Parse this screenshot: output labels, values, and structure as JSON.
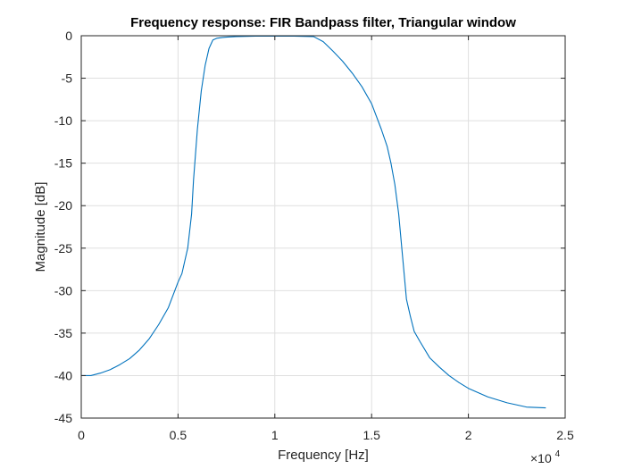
{
  "chart_data": {
    "type": "line",
    "title": "Frequency response: FIR Bandpass filter, Triangular window",
    "xlabel": "Frequency [Hz]",
    "ylabel": "Magnitude [dB]",
    "x_exponent_base": "×10",
    "x_exponent_power": "4",
    "xlim": [
      0,
      25000
    ],
    "ylim": [
      -45,
      0
    ],
    "x_ticks": [
      0,
      5000,
      10000,
      15000,
      20000,
      25000
    ],
    "x_tick_labels": [
      "0",
      "0.5",
      "1",
      "1.5",
      "2",
      "2.5"
    ],
    "y_ticks": [
      0,
      -5,
      -10,
      -15,
      -20,
      -25,
      -30,
      -35,
      -40,
      -45
    ],
    "y_tick_labels": [
      "0",
      "-5",
      "-10",
      "-15",
      "-20",
      "-25",
      "-30",
      "-35",
      "-40",
      "-45"
    ],
    "grid": true,
    "colors": {
      "line": "#0072bd",
      "grid": "#dfdfdf",
      "axes": "#262626"
    },
    "series": [
      {
        "x": [
          0,
          500,
          1000,
          1500,
          2000,
          2500,
          3000,
          3500,
          4000,
          4500,
          5000,
          5200,
          5500,
          5700,
          5800,
          6000,
          6200,
          6400,
          6600,
          6800,
          7000,
          7300,
          7600,
          8000,
          9000,
          10000,
          11000,
          12000,
          12500,
          13000,
          13500,
          14000,
          14500,
          15000,
          15500,
          15800,
          16000,
          16200,
          16400,
          16600,
          16800,
          17000,
          17200,
          17500,
          18000,
          18500,
          19000,
          19500,
          20000,
          21000,
          22000,
          23000,
          24000
        ],
        "y": [
          -40.0,
          -40.0,
          -39.7,
          -39.3,
          -38.7,
          -38.0,
          -37.0,
          -35.7,
          -34.0,
          -32.0,
          -29.0,
          -28.0,
          -25.0,
          -21.0,
          -17.0,
          -11.0,
          -6.5,
          -3.5,
          -1.5,
          -0.5,
          -0.3,
          -0.2,
          -0.15,
          -0.1,
          -0.05,
          -0.05,
          -0.05,
          -0.1,
          -0.7,
          -1.8,
          -3.0,
          -4.4,
          -6.0,
          -8.0,
          -11.0,
          -13.0,
          -15.0,
          -17.5,
          -21.0,
          -26.0,
          -31.0,
          -33.0,
          -34.8,
          -36.0,
          -37.9,
          -39.0,
          -40.0,
          -40.8,
          -41.5,
          -42.5,
          -43.2,
          -43.7,
          -43.8
        ]
      }
    ]
  }
}
